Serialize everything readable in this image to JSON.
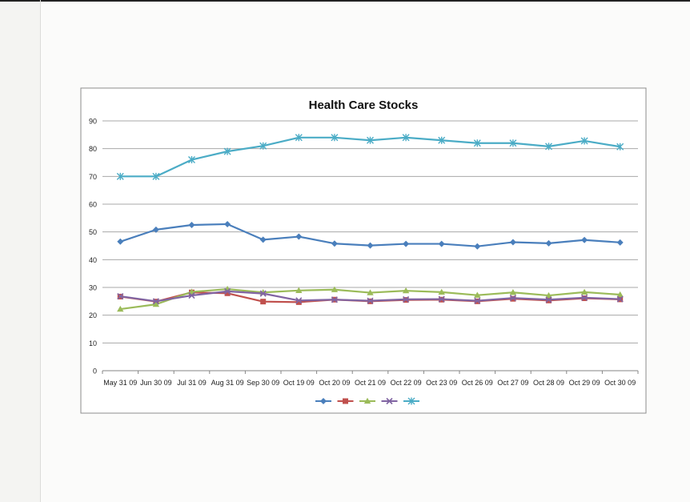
{
  "chart_data": {
    "type": "line",
    "title": "Health Care Stocks",
    "xlabel": "",
    "ylabel": "",
    "categories": [
      "May 31 09",
      "Jun 30 09",
      "Jul 31 09",
      "Aug 31 09",
      "Sep 30 09",
      "Oct 19 09",
      "Oct 20 09",
      "Oct 21 09",
      "Oct 22 09",
      "Oct 23 09",
      "Oct 26 09",
      "Oct 27 09",
      "Oct 28 09",
      "Oct 29 09",
      "Oct 30 09"
    ],
    "ylim": [
      0,
      90
    ],
    "yticks": [
      0,
      10,
      20,
      30,
      40,
      50,
      60,
      70,
      80,
      90
    ],
    "grid": true,
    "legend": "bottom",
    "series": [
      {
        "color": "#4a7fbc",
        "marker": "diamond",
        "values": [
          46.5,
          50.8,
          52.5,
          52.8,
          47.2,
          48.3,
          45.8,
          45.1,
          45.7,
          45.7,
          44.8,
          46.3,
          45.9,
          47.1,
          46.2
        ]
      },
      {
        "color": "#c0504d",
        "marker": "square",
        "values": [
          26.7,
          24.9,
          28.2,
          27.9,
          24.9,
          24.7,
          25.6,
          25.0,
          25.5,
          25.6,
          25.0,
          25.9,
          25.3,
          26.1,
          25.7
        ]
      },
      {
        "color": "#9bbb59",
        "marker": "triangle",
        "values": [
          22.2,
          23.9,
          28.4,
          29.4,
          28.2,
          28.9,
          29.2,
          28.1,
          28.8,
          28.3,
          27.2,
          28.2,
          27.1,
          28.3,
          27.4
        ]
      },
      {
        "color": "#8064a2",
        "marker": "x",
        "values": [
          26.8,
          25.0,
          27.1,
          28.6,
          27.8,
          25.3,
          25.6,
          25.2,
          25.7,
          25.8,
          25.2,
          26.2,
          25.6,
          26.3,
          25.8
        ]
      },
      {
        "color": "#4bacc6",
        "marker": "star",
        "values": [
          70.0,
          70.0,
          76.0,
          79.0,
          81.0,
          84.0,
          84.0,
          83.0,
          84.0,
          83.0,
          82.0,
          82.0,
          80.8,
          82.8,
          80.7
        ]
      }
    ]
  }
}
